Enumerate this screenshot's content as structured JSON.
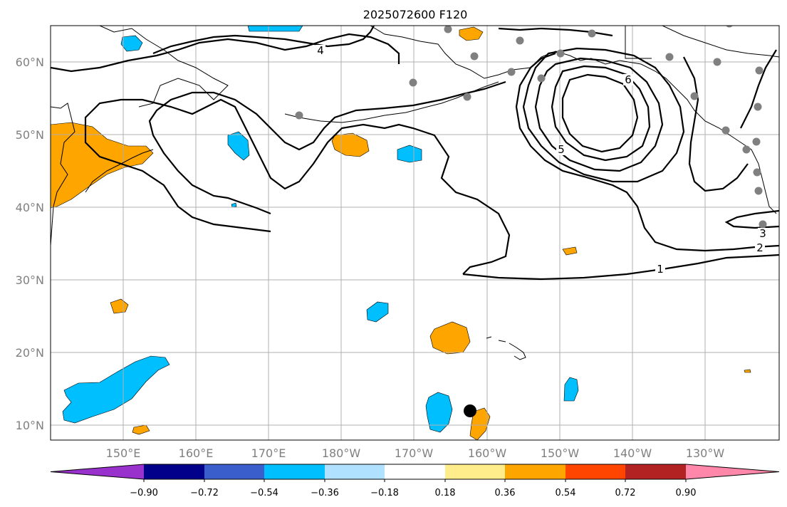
{
  "title": "2025072600 F120",
  "map": {
    "lat_labels": [
      "60°N",
      "50°N",
      "40°N",
      "30°N",
      "20°N",
      "10°N"
    ],
    "lon_labels": [
      "150°E",
      "160°E",
      "170°E",
      "180°W",
      "170°W",
      "160°W",
      "150°W",
      "140°W",
      "130°W"
    ],
    "contour_labels": [
      "1",
      "2",
      "3",
      "4",
      "5",
      "6"
    ]
  },
  "colorbar": {
    "ticks": [
      "−0.90",
      "−0.72",
      "−0.54",
      "−0.36",
      "−0.18",
      "0.18",
      "0.36",
      "0.54",
      "0.72",
      "0.90"
    ],
    "colors": [
      "#9932cc",
      "#00008b",
      "#3a5fcd",
      "#00bfff",
      "#b0e2ff",
      "#ffffff",
      "#ffec8b",
      "#ffa500",
      "#ff4500",
      "#b22222",
      "#ff88aa"
    ]
  },
  "colors": {
    "negative_fill": "#00bfff",
    "positive_fill": "#ffa500",
    "station_marker": "#808080",
    "storm_marker": "#000000"
  }
}
